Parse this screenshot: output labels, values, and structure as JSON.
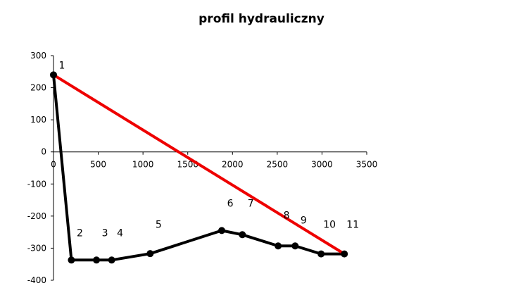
{
  "chart_data": {
    "type": "line",
    "title": "profil hydrauliczny",
    "xlabel": "",
    "ylabel": "",
    "xlim": [
      0,
      3500
    ],
    "ylim": [
      -400,
      300
    ],
    "x_ticks": [
      0,
      500,
      1000,
      1500,
      2000,
      2500,
      3000,
      3500
    ],
    "y_ticks": [
      300,
      200,
      100,
      0,
      -100,
      -200,
      -300,
      -400
    ],
    "grid": false,
    "legend": "none",
    "series": [
      {
        "color": "#000000",
        "marker": "circle",
        "points": [
          {
            "x": 0,
            "y": 240,
            "label": "1",
            "label_y": 270
          },
          {
            "x": 200,
            "y": -337,
            "label": "2",
            "label_y": -252
          },
          {
            "x": 480,
            "y": -337,
            "label": "3",
            "label_y": -252
          },
          {
            "x": 650,
            "y": -337,
            "label": "4",
            "label_y": -252
          },
          {
            "x": 1080,
            "y": -317,
            "label": "5",
            "label_y": -226
          },
          {
            "x": 1880,
            "y": -245,
            "label": "6",
            "label_y": -160
          },
          {
            "x": 2110,
            "y": -258,
            "label": "7",
            "label_y": -160
          },
          {
            "x": 2510,
            "y": -293,
            "label": "8",
            "label_y": -197
          },
          {
            "x": 2700,
            "y": -293,
            "label": "9",
            "label_y": -212
          },
          {
            "x": 2990,
            "y": -318,
            "label": "10",
            "label_y": -226
          },
          {
            "x": 3250,
            "y": -318,
            "label": "11",
            "label_y": -226
          }
        ]
      },
      {
        "color": "#ee0000",
        "marker": "none",
        "points": [
          {
            "x": 0,
            "y": 240
          },
          {
            "x": 3250,
            "y": -318
          }
        ]
      }
    ]
  }
}
